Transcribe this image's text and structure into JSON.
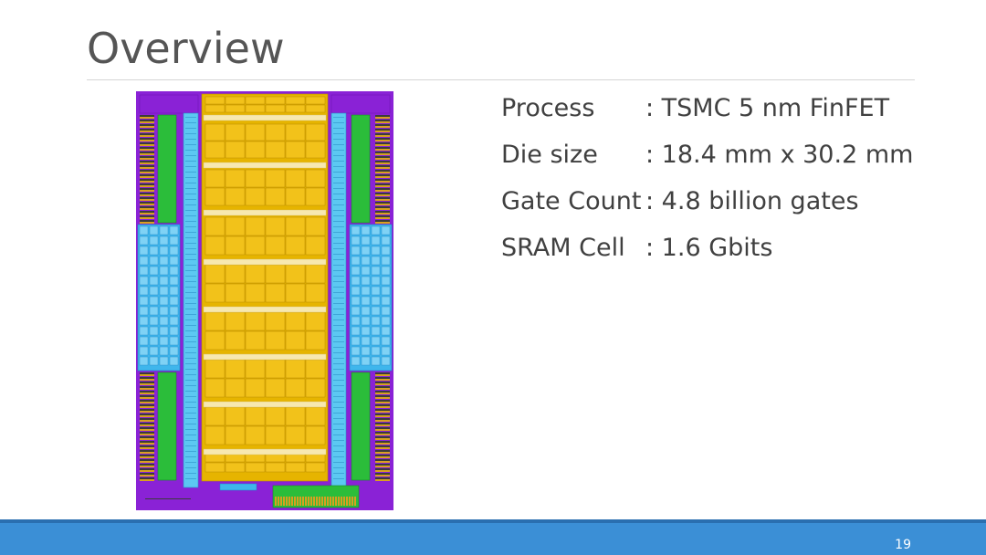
{
  "slide": {
    "title": "Overview",
    "page_number": "19"
  },
  "specs": [
    {
      "label": "Process",
      "value": ": TSMC 5 nm FinFET"
    },
    {
      "label": "Die size",
      "value": ": 18.4 mm x 30.2 mm"
    },
    {
      "label": "Gate Count",
      "value": ": 4.8 billion gates"
    },
    {
      "label": "SRAM Cell",
      "value": ": 1.6 Gbits"
    }
  ],
  "die_plot": {
    "colors": {
      "border": "#8a22d6",
      "core": "#e6b400",
      "cell": "#f2c21a",
      "strip": "#f7e8b0",
      "sram": "#3fb6ec",
      "bus": "#5cc8f2",
      "green": "#2bbd3a",
      "io_dark": "#3b3b3b",
      "io_gold": "#d8a020"
    }
  },
  "theme": {
    "footer_color": "#3b8fd6"
  }
}
